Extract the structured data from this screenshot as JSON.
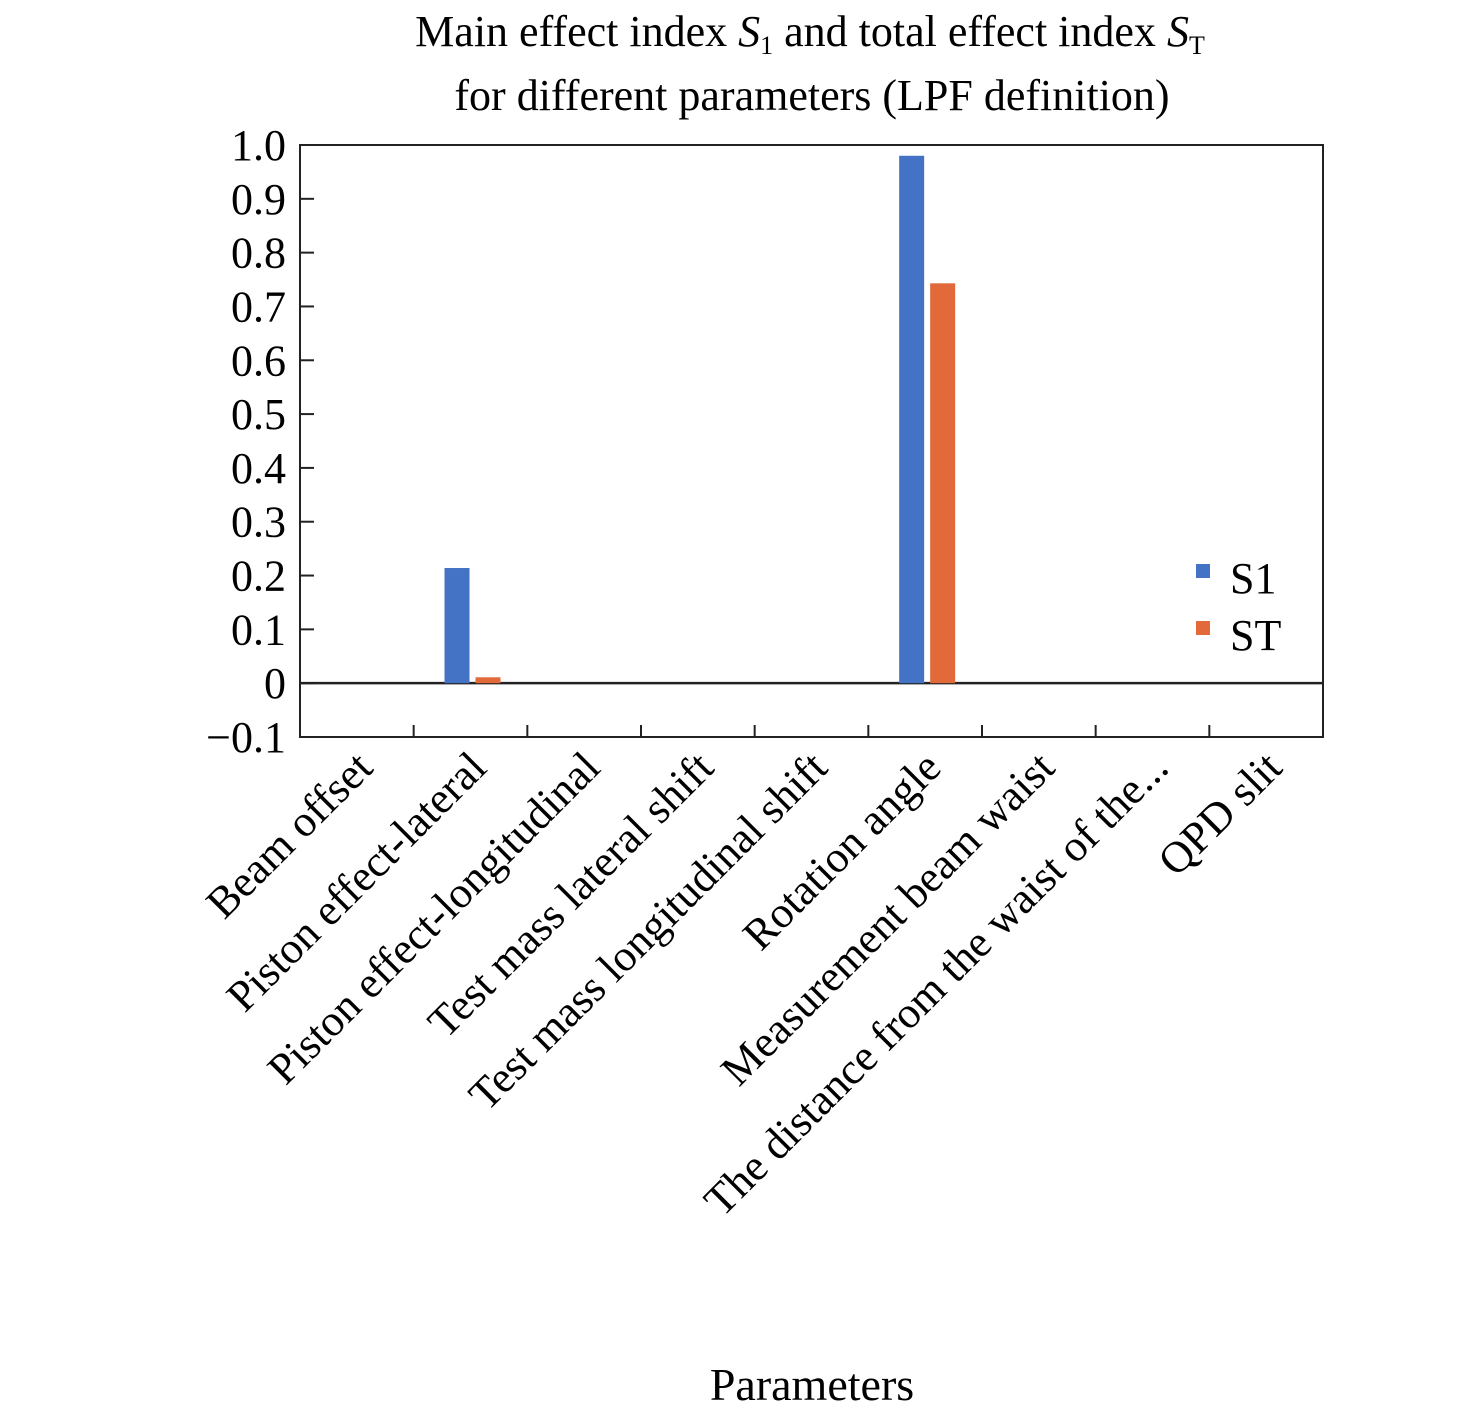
{
  "chart_data": {
    "type": "bar",
    "title": {
      "line1": {
        "a": "Main effect index ",
        "s1_main": "S",
        "s1_sub": "1",
        "b": " and total effect index ",
        "st_main": "S",
        "st_sub": "T"
      },
      "line2": "for different parameters (LPF definition)"
    },
    "xlabel": "Parameters",
    "ylabel": "",
    "ylim": [
      -0.1,
      1.0
    ],
    "yticks": [
      "1.0",
      "0.9",
      "0.8",
      "0.7",
      "0.6",
      "0.5",
      "0.4",
      "0.3",
      "0.2",
      "0.1",
      "0",
      "−0.1"
    ],
    "ytick_values": [
      1.0,
      0.9,
      0.8,
      0.7,
      0.6,
      0.5,
      0.4,
      0.3,
      0.2,
      0.1,
      0,
      -0.1
    ],
    "categories": [
      "Beam offset",
      "Piston effect-lateral",
      "Piston effect-longitudinal",
      "Test mass lateral shift",
      "Test mass longitudinal shift",
      "Rotation angle",
      "Measurement beam waist",
      "The distance from the waist of the...",
      "QPD slit"
    ],
    "series": [
      {
        "name": "S1",
        "color": "#4472C4",
        "values": [
          0,
          0.214,
          0,
          0,
          0,
          0.98,
          0,
          0,
          0
        ]
      },
      {
        "name": "ST",
        "color": "#E2693A",
        "values": [
          0,
          0.011,
          0,
          0,
          0,
          0.743,
          0,
          0,
          0
        ]
      }
    ],
    "legend": "right",
    "grid": false
  }
}
